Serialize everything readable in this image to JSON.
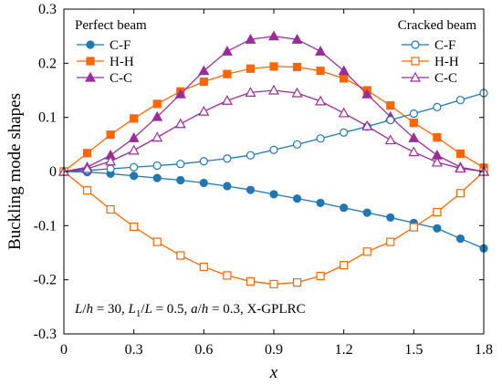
{
  "chart_data": {
    "type": "line",
    "xlabel": "x",
    "ylabel": "Buckling mode shapes",
    "xlim": [
      0,
      1.8
    ],
    "ylim": [
      -0.3,
      0.3
    ],
    "xticks": [
      "0",
      "0.3",
      "0.6",
      "0.9",
      "1.2",
      "1.5",
      "1.8"
    ],
    "yticks": [
      "-0.3",
      "-0.2",
      "-0.1",
      "0",
      "0.1",
      "0.2",
      "0.3"
    ],
    "x": [
      0,
      0.1,
      0.2,
      0.3,
      0.4,
      0.5,
      0.6,
      0.7,
      0.8,
      0.9,
      1.0,
      1.1,
      1.2,
      1.3,
      1.4,
      1.5,
      1.6,
      1.7,
      1.8
    ],
    "legend_left_title": "Perfect beam",
    "legend_right_title": "Cracked beam",
    "annotation": {
      "p1": "L",
      "p2": "/",
      "p3": "h",
      "p4": " = 30, ",
      "p5": "L",
      "p6": "1",
      "p7": "/",
      "p8": "L",
      "p9": " = 0.5, ",
      "p10": "a",
      "p11": "/",
      "p12": "h",
      "p13": " = 0.3, X-GPLRC"
    },
    "series": [
      {
        "name": "C-F",
        "group": "perfect",
        "color": "#1f77b4",
        "marker": "circle",
        "filled": true,
        "values": [
          0,
          -0.001,
          -0.004,
          -0.008,
          -0.012,
          -0.016,
          -0.021,
          -0.027,
          -0.034,
          -0.042,
          -0.05,
          -0.058,
          -0.067,
          -0.076,
          -0.085,
          -0.095,
          -0.105,
          -0.124,
          -0.142
        ]
      },
      {
        "name": "H-H",
        "group": "perfect",
        "color": "#ff6600",
        "marker": "square",
        "filled": true,
        "values": [
          0,
          0.034,
          0.068,
          0.098,
          0.125,
          0.148,
          0.166,
          0.18,
          0.19,
          0.194,
          0.193,
          0.186,
          0.172,
          0.15,
          0.122,
          0.09,
          0.063,
          0.033,
          0.007
        ]
      },
      {
        "name": "C-C",
        "group": "perfect",
        "color": "#9b2d9b",
        "marker": "triangle",
        "filled": true,
        "values": [
          0,
          0.008,
          0.03,
          0.062,
          0.101,
          0.143,
          0.186,
          0.222,
          0.244,
          0.25,
          0.244,
          0.222,
          0.186,
          0.143,
          0.101,
          0.062,
          0.03,
          0.008,
          0
        ]
      },
      {
        "name": "C-F",
        "group": "cracked",
        "color": "#1f77b4",
        "marker": "circle",
        "filled": false,
        "values": [
          0,
          0.002,
          0.005,
          0.008,
          0.011,
          0.014,
          0.019,
          0.024,
          0.03,
          0.04,
          0.05,
          0.061,
          0.072,
          0.083,
          0.095,
          0.107,
          0.119,
          0.132,
          0.145
        ]
      },
      {
        "name": "H-H",
        "group": "cracked",
        "color": "#ff6600",
        "marker": "square",
        "filled": false,
        "values": [
          0,
          -0.035,
          -0.07,
          -0.102,
          -0.13,
          -0.155,
          -0.176,
          -0.192,
          -0.203,
          -0.208,
          -0.205,
          -0.193,
          -0.173,
          -0.148,
          -0.13,
          -0.103,
          -0.075,
          -0.04,
          0
        ]
      },
      {
        "name": "C-C",
        "group": "cracked",
        "color": "#9b2d9b",
        "marker": "triangle",
        "filled": false,
        "values": [
          0,
          0.005,
          0.019,
          0.039,
          0.063,
          0.088,
          0.111,
          0.131,
          0.146,
          0.15,
          0.145,
          0.13,
          0.108,
          0.084,
          0.058,
          0.036,
          0.017,
          0.006,
          0
        ]
      }
    ]
  }
}
